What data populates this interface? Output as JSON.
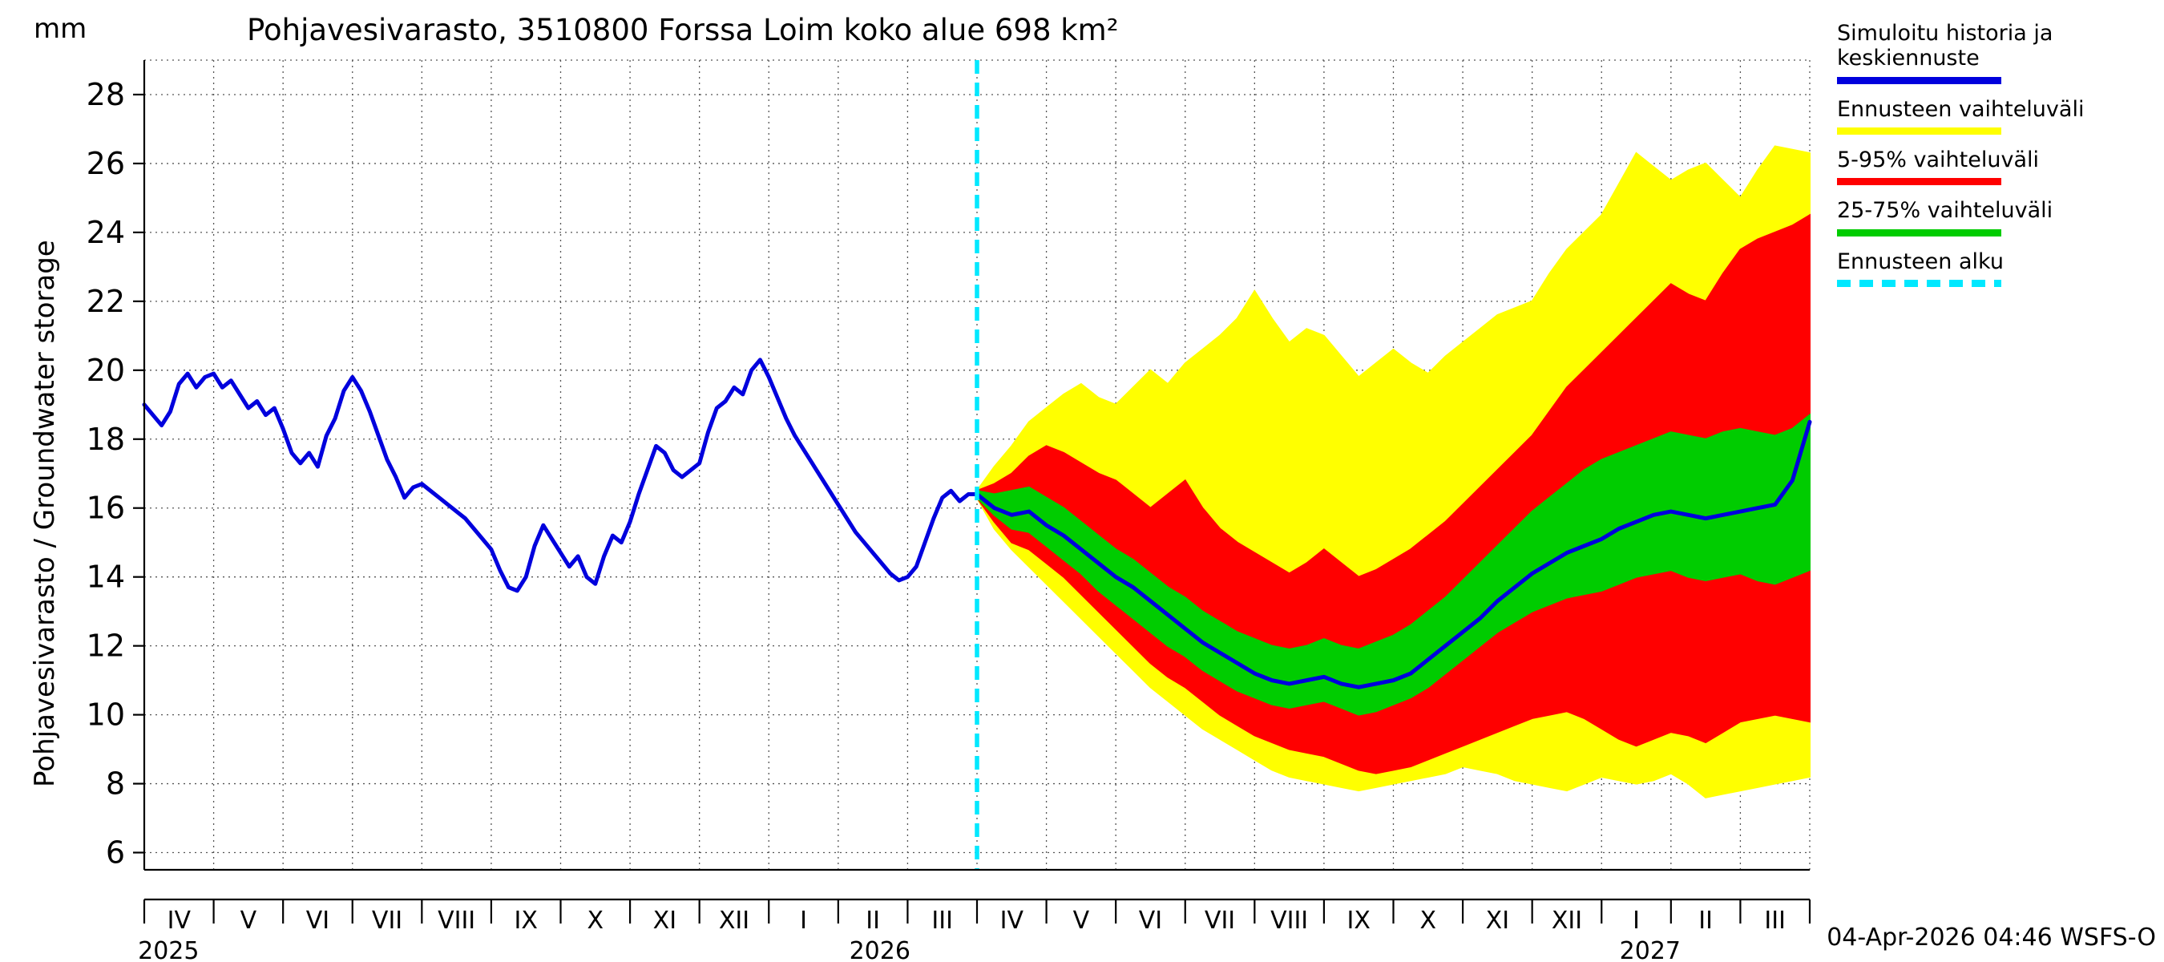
{
  "chart_data": {
    "type": "line",
    "title": "Pohjavesivarasto, 3510800 Forssa Loim koko alue 698 km²",
    "ylabel": "Pohjavesivarasto / Groundwater storage",
    "yunit": "mm",
    "xlabel": "",
    "ylim": [
      5.5,
      29
    ],
    "yticks": [
      6,
      8,
      10,
      12,
      14,
      16,
      18,
      20,
      22,
      24,
      26,
      28
    ],
    "x_months": [
      "IV",
      "V",
      "VI",
      "VII",
      "VIII",
      "IX",
      "X",
      "XI",
      "XII",
      "I",
      "II",
      "III",
      "IV",
      "V",
      "VI",
      "VII",
      "VIII",
      "IX",
      "X",
      "XI",
      "XII",
      "I",
      "II",
      "III"
    ],
    "year_labels": [
      {
        "text": "2025",
        "t": 0.35
      },
      {
        "text": "2026",
        "t": 10.6
      },
      {
        "text": "2027",
        "t": 21.7
      }
    ],
    "forecast_start_t": 12.0,
    "colors": {
      "forecast_start": "#00e8ff",
      "grid": "#555555"
    },
    "series": {
      "history": {
        "name": "Simuloitu historia ja keskiennuste",
        "color": "#0000dd",
        "t0": 0,
        "dt": 0.125,
        "values": [
          19.0,
          18.7,
          18.4,
          18.8,
          19.6,
          19.9,
          19.5,
          19.8,
          19.9,
          19.5,
          19.7,
          19.3,
          18.9,
          19.1,
          18.7,
          18.9,
          18.3,
          17.6,
          17.3,
          17.6,
          17.2,
          18.1,
          18.6,
          19.4,
          19.8,
          19.4,
          18.8,
          18.1,
          17.4,
          16.9,
          16.3,
          16.6,
          16.7,
          16.5,
          16.3,
          16.1,
          15.9,
          15.7,
          15.4,
          15.1,
          14.8,
          14.2,
          13.7,
          13.6,
          14.0,
          14.9,
          15.5,
          15.1,
          14.7,
          14.3,
          14.6,
          14.0,
          13.8,
          14.6,
          15.2,
          15.0,
          15.6,
          16.4,
          17.1,
          17.8,
          17.6,
          17.1,
          16.9,
          17.1,
          17.3,
          18.2,
          18.9,
          19.1,
          19.5,
          19.3,
          20.0,
          20.3,
          19.8,
          19.2,
          18.6,
          18.1,
          17.7,
          17.3,
          16.9,
          16.5,
          16.1,
          15.7,
          15.3,
          15.0,
          14.7,
          14.4,
          14.1,
          13.9,
          14.0,
          14.3,
          15.0,
          15.7,
          16.3,
          16.5,
          16.2,
          16.4,
          16.4
        ]
      },
      "median": {
        "name": "keskiennuste",
        "color": "#0000dd",
        "t0": 12,
        "dt": 0.25,
        "values": [
          16.4,
          16.0,
          15.8,
          15.9,
          15.5,
          15.2,
          14.8,
          14.4,
          14.0,
          13.7,
          13.3,
          12.9,
          12.5,
          12.1,
          11.8,
          11.5,
          11.2,
          11.0,
          10.9,
          11.0,
          11.1,
          10.9,
          10.8,
          10.9,
          11.0,
          11.2,
          11.6,
          12.0,
          12.4,
          12.8,
          13.3,
          13.7,
          14.1,
          14.4,
          14.7,
          14.9,
          15.1,
          15.4,
          15.6,
          15.8,
          15.9,
          15.8,
          15.7,
          15.8,
          15.9,
          16.0,
          16.1,
          16.8,
          18.5
        ]
      },
      "band_full": {
        "name": "Ennusteen vaihteluväli",
        "color": "#ffff00",
        "t0": 12,
        "dt": 0.25,
        "upper": [
          16.5,
          17.2,
          17.8,
          18.5,
          18.9,
          19.3,
          19.6,
          19.2,
          19.0,
          19.5,
          20.0,
          19.6,
          20.2,
          20.6,
          21.0,
          21.5,
          22.3,
          21.5,
          20.8,
          21.2,
          21.0,
          20.4,
          19.8,
          20.2,
          20.6,
          20.2,
          19.9,
          20.4,
          20.8,
          21.2,
          21.6,
          21.8,
          22.0,
          22.8,
          23.5,
          24.0,
          24.5,
          25.4,
          26.3,
          25.9,
          25.5,
          25.8,
          26.0,
          25.5,
          25.0,
          25.8,
          26.5,
          26.4,
          26.3
        ],
        "lower": [
          16.3,
          15.4,
          14.8,
          14.3,
          13.8,
          13.3,
          12.8,
          12.3,
          11.8,
          11.3,
          10.8,
          10.4,
          10.0,
          9.6,
          9.3,
          9.0,
          8.7,
          8.4,
          8.2,
          8.1,
          8.0,
          7.9,
          7.8,
          7.9,
          8.0,
          8.1,
          8.2,
          8.3,
          8.5,
          8.4,
          8.3,
          8.1,
          8.0,
          7.9,
          7.8,
          8.0,
          8.2,
          8.1,
          8.0,
          8.1,
          8.3,
          8.0,
          7.6,
          7.7,
          7.8,
          7.9,
          8.0,
          8.1,
          8.2
        ]
      },
      "band_5_95": {
        "name": "5-95% vaihteluväli",
        "color": "#ff0000",
        "t0": 12,
        "dt": 0.25,
        "upper": [
          16.5,
          16.7,
          17.0,
          17.5,
          17.8,
          17.6,
          17.3,
          17.0,
          16.8,
          16.4,
          16.0,
          16.4,
          16.8,
          16.0,
          15.4,
          15.0,
          14.7,
          14.4,
          14.1,
          14.4,
          14.8,
          14.4,
          14.0,
          14.2,
          14.5,
          14.8,
          15.2,
          15.6,
          16.1,
          16.6,
          17.1,
          17.6,
          18.1,
          18.8,
          19.5,
          20.0,
          20.5,
          21.0,
          21.5,
          22.0,
          22.5,
          22.2,
          22.0,
          22.8,
          23.5,
          23.8,
          24.0,
          24.2,
          24.5
        ],
        "lower": [
          16.3,
          15.6,
          15.0,
          14.8,
          14.4,
          14.0,
          13.5,
          13.0,
          12.5,
          12.0,
          11.5,
          11.1,
          10.8,
          10.4,
          10.0,
          9.7,
          9.4,
          9.2,
          9.0,
          8.9,
          8.8,
          8.6,
          8.4,
          8.3,
          8.4,
          8.5,
          8.7,
          8.9,
          9.1,
          9.3,
          9.5,
          9.7,
          9.9,
          10.0,
          10.1,
          9.9,
          9.6,
          9.3,
          9.1,
          9.3,
          9.5,
          9.4,
          9.2,
          9.5,
          9.8,
          9.9,
          10.0,
          9.9,
          9.8
        ]
      },
      "band_25_75": {
        "name": "25-75% vaihteluväli",
        "color": "#00cc00",
        "t0": 12,
        "dt": 0.25,
        "upper": [
          16.5,
          16.4,
          16.5,
          16.6,
          16.3,
          16.0,
          15.6,
          15.2,
          14.8,
          14.5,
          14.1,
          13.7,
          13.4,
          13.0,
          12.7,
          12.4,
          12.2,
          12.0,
          11.9,
          12.0,
          12.2,
          12.0,
          11.9,
          12.1,
          12.3,
          12.6,
          13.0,
          13.4,
          13.9,
          14.4,
          14.9,
          15.4,
          15.9,
          16.3,
          16.7,
          17.1,
          17.4,
          17.6,
          17.8,
          18.0,
          18.2,
          18.1,
          18.0,
          18.2,
          18.3,
          18.2,
          18.1,
          18.3,
          18.7
        ],
        "lower": [
          16.3,
          15.8,
          15.4,
          15.3,
          14.9,
          14.5,
          14.1,
          13.6,
          13.2,
          12.8,
          12.4,
          12.0,
          11.7,
          11.3,
          11.0,
          10.7,
          10.5,
          10.3,
          10.2,
          10.3,
          10.4,
          10.2,
          10.0,
          10.1,
          10.3,
          10.5,
          10.8,
          11.2,
          11.6,
          12.0,
          12.4,
          12.7,
          13.0,
          13.2,
          13.4,
          13.5,
          13.6,
          13.8,
          14.0,
          14.1,
          14.2,
          14.0,
          13.9,
          14.0,
          14.1,
          13.9,
          13.8,
          14.0,
          14.2
        ]
      }
    }
  },
  "legend": {
    "items": [
      {
        "label": "Simuloitu historia ja keskiennuste",
        "color": "#0000dd",
        "dashed": false
      },
      {
        "label": "Ennusteen vaihteluväli",
        "color": "#ffff00",
        "dashed": false
      },
      {
        "label": "5-95% vaihteluväli",
        "color": "#ff0000",
        "dashed": false
      },
      {
        "label": "25-75% vaihteluväli",
        "color": "#00cc00",
        "dashed": false
      },
      {
        "label": "Ennusteen alku",
        "color": "#00e8ff",
        "dashed": true
      }
    ]
  },
  "footer": {
    "timestamp": "04-Apr-2026 04:46 WSFS-O"
  }
}
